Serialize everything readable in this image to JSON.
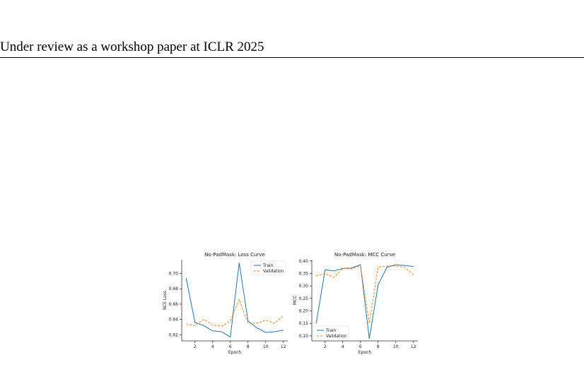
{
  "page": {
    "header_text": "Under review as a workshop paper at ICLR 2025"
  },
  "colors": {
    "train": "#1f77b4",
    "validation": "#ff7f0e"
  },
  "chart_data": [
    {
      "id": "loss",
      "type": "line",
      "title": "No-PadMask: Loss Curve",
      "xlabel": "Epoch",
      "ylabel": "BCE Loss",
      "xlim": [
        0.5,
        12.5
      ],
      "ylim": [
        0.612,
        0.718
      ],
      "xticks": [
        2,
        4,
        6,
        8,
        10,
        12
      ],
      "yticks": [
        0.62,
        0.64,
        0.66,
        0.68,
        0.7
      ],
      "ytick_labels": [
        "0.62",
        "0.64",
        "0.66",
        "0.68",
        "0.70"
      ],
      "legend_position": "top-right",
      "grid": false,
      "series": [
        {
          "name": "Train",
          "style": "solid",
          "x": [
            1,
            2,
            3,
            4,
            5,
            6,
            7,
            8,
            9,
            10,
            11,
            12
          ],
          "values": [
            0.694,
            0.636,
            0.632,
            0.625,
            0.624,
            0.617,
            0.714,
            0.638,
            0.629,
            0.623,
            0.624,
            0.626
          ]
        },
        {
          "name": "Validation",
          "style": "dashed",
          "x": [
            1,
            2,
            3,
            4,
            5,
            6,
            7,
            8,
            9,
            10,
            11,
            12
          ],
          "values": [
            0.634,
            0.632,
            0.64,
            0.633,
            0.631,
            0.638,
            0.666,
            0.635,
            0.635,
            0.639,
            0.635,
            0.645
          ]
        }
      ]
    },
    {
      "id": "mcc",
      "type": "line",
      "title": "No-PadMask: MCC Curve",
      "xlabel": "Epoch",
      "ylabel": "MCC",
      "xlim": [
        0.5,
        12.5
      ],
      "ylim": [
        0.08,
        0.405
      ],
      "xticks": [
        2,
        4,
        6,
        8,
        10,
        12
      ],
      "yticks": [
        0.1,
        0.15,
        0.2,
        0.25,
        0.3,
        0.35,
        0.4
      ],
      "ytick_labels": [
        "0.10",
        "0.15",
        "0.20",
        "0.25",
        "0.30",
        "0.35",
        "0.40"
      ],
      "legend_position": "bottom-left",
      "grid": false,
      "series": [
        {
          "name": "Train",
          "style": "solid",
          "x": [
            1,
            2,
            3,
            4,
            5,
            6,
            7,
            8,
            9,
            10,
            11,
            12
          ],
          "values": [
            0.15,
            0.365,
            0.36,
            0.37,
            0.372,
            0.385,
            0.088,
            0.305,
            0.375,
            0.385,
            0.382,
            0.378
          ]
        },
        {
          "name": "Validation",
          "style": "dashed",
          "x": [
            1,
            2,
            3,
            4,
            5,
            6,
            7,
            8,
            9,
            10,
            11,
            12
          ],
          "values": [
            0.34,
            0.35,
            0.335,
            0.37,
            0.368,
            0.382,
            0.15,
            0.375,
            0.38,
            0.38,
            0.375,
            0.345
          ]
        }
      ]
    }
  ]
}
